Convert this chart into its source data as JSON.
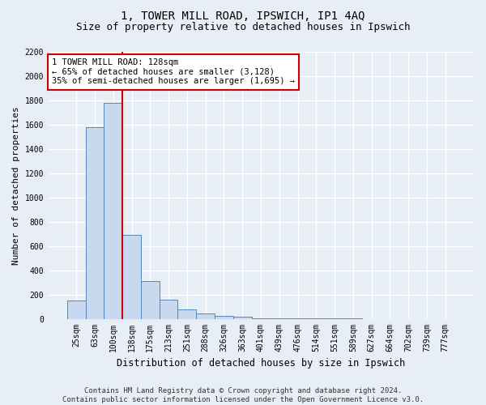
{
  "title": "1, TOWER MILL ROAD, IPSWICH, IP1 4AQ",
  "subtitle": "Size of property relative to detached houses in Ipswich",
  "xlabel": "Distribution of detached houses by size in Ipswich",
  "ylabel": "Number of detached properties",
  "categories": [
    "25sqm",
    "63sqm",
    "100sqm",
    "138sqm",
    "175sqm",
    "213sqm",
    "251sqm",
    "288sqm",
    "326sqm",
    "363sqm",
    "401sqm",
    "439sqm",
    "476sqm",
    "514sqm",
    "551sqm",
    "589sqm",
    "627sqm",
    "664sqm",
    "702sqm",
    "739sqm",
    "777sqm"
  ],
  "values": [
    150,
    1580,
    1780,
    690,
    310,
    155,
    80,
    45,
    25,
    15,
    5,
    3,
    2,
    1,
    1,
    1,
    0,
    0,
    0,
    0,
    0
  ],
  "bar_color": "#c8d8ee",
  "bar_edge_color": "#5588bb",
  "vline_color": "#cc0000",
  "vline_pos": 2.5,
  "ylim": [
    0,
    2200
  ],
  "yticks": [
    0,
    200,
    400,
    600,
    800,
    1000,
    1200,
    1400,
    1600,
    1800,
    2000,
    2200
  ],
  "annotation_text": "1 TOWER MILL ROAD: 128sqm\n← 65% of detached houses are smaller (3,128)\n35% of semi-detached houses are larger (1,695) →",
  "annotation_box_facecolor": "white",
  "annotation_box_edgecolor": "#cc0000",
  "footer_line1": "Contains HM Land Registry data © Crown copyright and database right 2024.",
  "footer_line2": "Contains public sector information licensed under the Open Government Licence v3.0.",
  "fig_bg_color": "#e8eef6",
  "plot_bg_color": "#e8eef6",
  "title_fontsize": 10,
  "subtitle_fontsize": 9,
  "ylabel_fontsize": 8,
  "xlabel_fontsize": 8.5,
  "tick_fontsize": 7,
  "annotation_fontsize": 7.5,
  "footer_fontsize": 6.5
}
